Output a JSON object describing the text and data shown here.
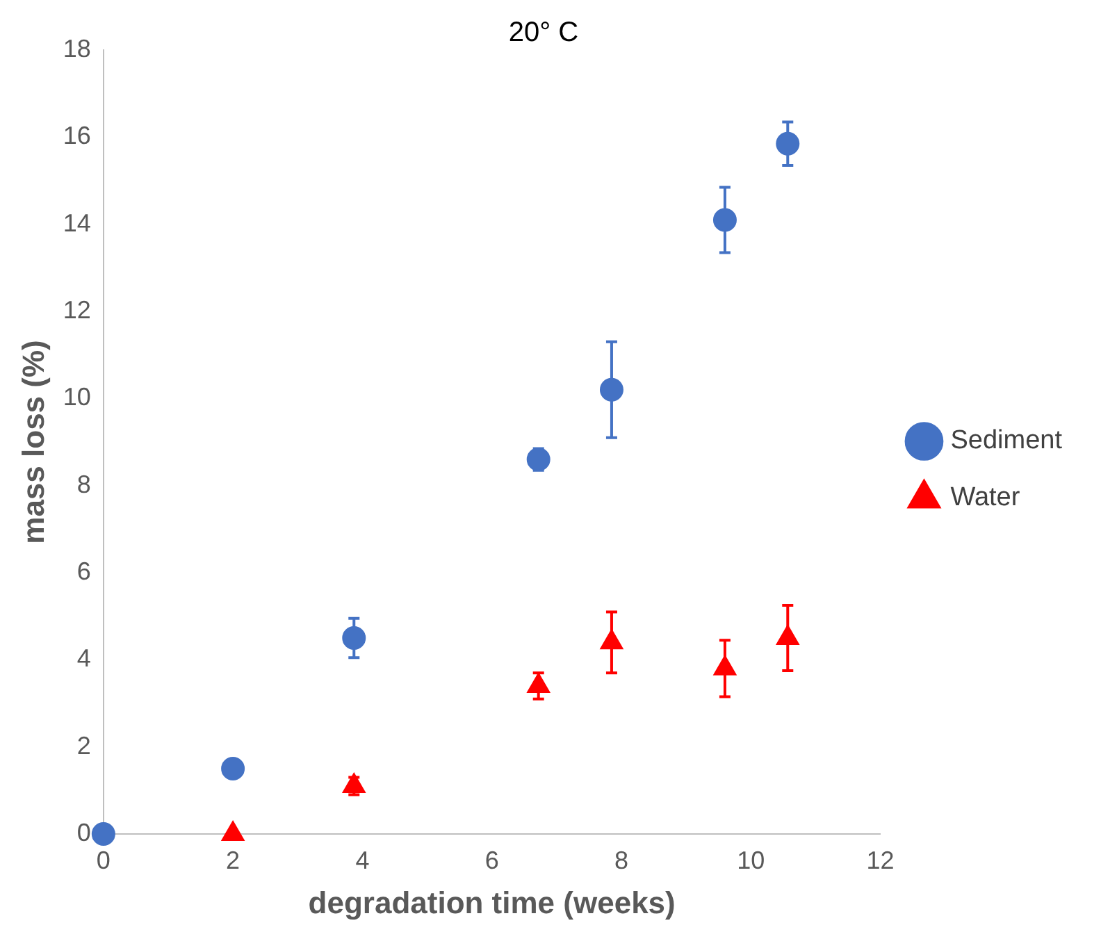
{
  "chart_data": {
    "type": "scatter",
    "title": "20° C",
    "xlabel": "degradation time (weeks)",
    "ylabel": "mass loss (%)",
    "xlim": [
      0,
      12
    ],
    "xticks": [
      0,
      2,
      4,
      6,
      8,
      10,
      12
    ],
    "ylim": [
      0,
      18
    ],
    "yticks": [
      0,
      2,
      4,
      6,
      8,
      10,
      12,
      14,
      16,
      18
    ],
    "grid": false,
    "legend": "right",
    "series": [
      {
        "name": "Sediment",
        "color": "#4472c4",
        "marker": "circle",
        "x": [
          0,
          2,
          3.87,
          6.72,
          7.85,
          9.6,
          10.57
        ],
        "values": [
          0,
          1.5,
          4.5,
          8.6,
          10.2,
          14.1,
          15.85
        ],
        "errors": [
          null,
          null,
          0.45,
          0.25,
          1.1,
          0.75,
          0.5
        ]
      },
      {
        "name": "Water",
        "color": "#ff0000",
        "marker": "triangle",
        "x": [
          2,
          3.87,
          6.72,
          7.85,
          9.6,
          10.57
        ],
        "values": [
          0,
          1.1,
          3.4,
          4.4,
          3.8,
          4.5
        ],
        "errors": [
          null,
          0.2,
          0.3,
          0.7,
          0.65,
          0.75
        ]
      }
    ]
  }
}
